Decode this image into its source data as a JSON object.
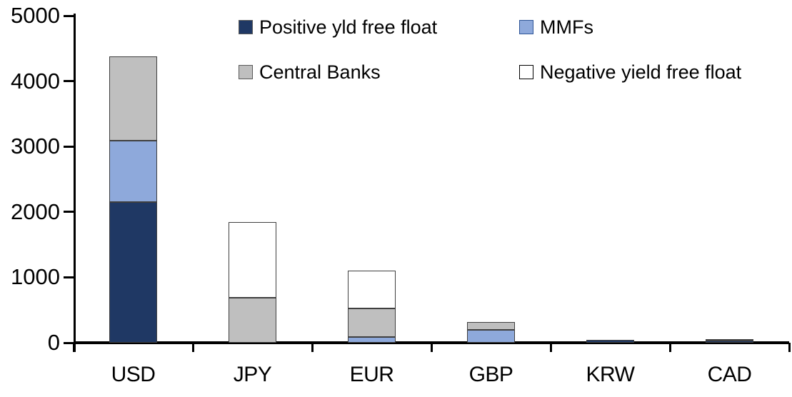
{
  "chart_data": {
    "type": "bar",
    "stacked": true,
    "title": "",
    "xlabel": "",
    "ylabel": "",
    "categories": [
      "USD",
      "JPY",
      "EUR",
      "GBP",
      "KRW",
      "CAD"
    ],
    "series": [
      {
        "name": "Positive yld free float",
        "color": "#1F3864",
        "swatch_border": "#595959",
        "values": [
          2150,
          0,
          0,
          0,
          40,
          30
        ]
      },
      {
        "name": "MMFs",
        "color": "#8EA9DB",
        "swatch_border": "#2E5597",
        "values": [
          940,
          0,
          90,
          200,
          0,
          0
        ]
      },
      {
        "name": "Central Banks",
        "color": "#BFBFBF",
        "swatch_border": "#595959",
        "values": [
          1290,
          690,
          430,
          120,
          0,
          30
        ]
      },
      {
        "name": "Negative yield free float",
        "color": "#FFFFFF",
        "swatch_border": "#000000",
        "values": [
          0,
          1150,
          580,
          0,
          0,
          0
        ]
      }
    ],
    "totals": [
      4380,
      1840,
      1100,
      320,
      40,
      60
    ],
    "ylim": [
      0,
      5000
    ],
    "yticks": [
      0,
      1000,
      2000,
      3000,
      4000,
      5000
    ],
    "grid": false,
    "legend_position": "top",
    "legend_rows": [
      [
        "Positive yld free float",
        "MMFs"
      ],
      [
        "Central Banks",
        "Negative yield free float"
      ]
    ]
  },
  "colors": {
    "axis": "#000000",
    "text": "#000000",
    "segment_border": "#3F3F3F",
    "background": "#FFFFFF"
  }
}
